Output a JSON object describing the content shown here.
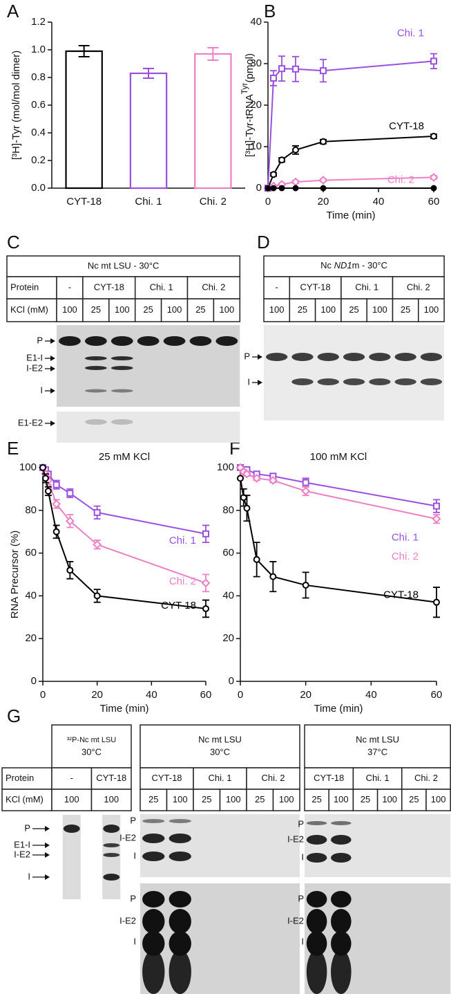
{
  "chart_data": [
    {
      "panel": "A",
      "type": "bar",
      "y_label": "[³H]-Tyr (mol/mol dimer)",
      "categories": [
        "CYT-18",
        "Chi. 1",
        "Chi. 2"
      ],
      "values": [
        0.99,
        0.83,
        0.97
      ],
      "errors": [
        0.04,
        0.035,
        0.045
      ],
      "colors": [
        "#000000",
        "#9a4fe0",
        "#ee7fc4"
      ],
      "ylim": [
        0,
        1.2
      ],
      "yticks": [
        {
          "value": 0,
          "label": "0.0"
        },
        0.2,
        0.4,
        0.6,
        0.8,
        {
          "value": 1,
          "label": "1.0"
        },
        1.2
      ]
    },
    {
      "panel": "B",
      "type": "line",
      "x_label": "Time (min)",
      "y_label": [
        "[³H]-Tyr-tRNA",
        "Tyr",
        "(pmol)"
      ],
      "x": [
        0,
        2,
        5,
        10,
        20,
        60
      ],
      "xlim": [
        0,
        60
      ],
      "xticks": [
        0,
        20,
        40,
        60
      ],
      "ylim": [
        0,
        40
      ],
      "yticks": [
        0,
        10,
        20,
        30,
        40
      ],
      "series": [
        {
          "name": "Chi. 1",
          "color": "#9a4fe0",
          "marker": "square",
          "values": [
            0,
            26.5,
            28.8,
            28.7,
            28.3,
            30.6
          ],
          "errors": [
            null,
            1.8,
            3,
            3,
            2.7,
            1.8
          ]
        },
        {
          "name": "CYT-18",
          "color": "#000000",
          "marker": "circle",
          "values": [
            0,
            3.3,
            6.8,
            9.2,
            11.2,
            12.5
          ],
          "errors": [
            null,
            0.4,
            0.5,
            1,
            0.5,
            0.5
          ]
        },
        {
          "name": "Chi. 2",
          "color": "#ee7fc4",
          "marker": "diamond",
          "values": [
            0,
            0.5,
            0.9,
            1.5,
            1.9,
            2.6
          ],
          "errors": [
            null,
            0.2,
            0.3,
            0.3,
            0.3,
            0.4
          ]
        },
        {
          "color": "#000000",
          "marker": "dot",
          "values": [
            0,
            0,
            0,
            0,
            0,
            0
          ]
        }
      ]
    },
    {
      "panel": "E",
      "type": "line",
      "title": "25 mM KCl",
      "x_label": "Time (min)",
      "y_label": "RNA Precursor (%)",
      "x": [
        0,
        1,
        2,
        5,
        10,
        20,
        60
      ],
      "xlim": [
        0,
        60
      ],
      "xticks": [
        0,
        20,
        40,
        60
      ],
      "ylim": [
        0,
        100
      ],
      "yticks": [
        0,
        20,
        40,
        60,
        80,
        100
      ],
      "series": [
        {
          "name": "Chi. 1",
          "color": "#9a4fe0",
          "marker": "square",
          "values": [
            100,
            99,
            97,
            92,
            88,
            79,
            69
          ],
          "errors": [
            null,
            1,
            1,
            2,
            2,
            3,
            4
          ]
        },
        {
          "name": "Chi. 2",
          "color": "#ee7fc4",
          "marker": "diamond",
          "values": [
            100,
            97,
            94,
            83,
            75,
            64,
            46
          ],
          "errors": [
            null,
            1,
            2,
            2,
            3,
            2,
            4
          ]
        },
        {
          "name": "CYT-18",
          "color": "#000000",
          "marker": "circle",
          "values": [
            100,
            95,
            89,
            70,
            52,
            40,
            34
          ],
          "errors": [
            null,
            2,
            2,
            3,
            4,
            3,
            4
          ]
        }
      ]
    },
    {
      "panel": "F",
      "type": "line",
      "title": "100 mM KCl",
      "x_label": "Time (min)",
      "x": [
        0,
        1,
        2,
        5,
        10,
        20,
        60
      ],
      "xlim": [
        0,
        60
      ],
      "xticks": [
        0,
        20,
        40,
        60
      ],
      "ylim": [
        0,
        100
      ],
      "yticks": [
        0,
        20,
        40,
        60,
        80,
        100
      ],
      "series": [
        {
          "name": "Chi. 1",
          "color": "#9a4fe0",
          "marker": "square",
          "values": [
            100,
            99,
            99,
            97,
            96,
            93,
            82
          ],
          "errors": [
            null,
            1,
            1,
            1,
            1,
            2,
            3
          ]
        },
        {
          "name": "Chi. 2",
          "color": "#ee7fc4",
          "marker": "diamond",
          "values": [
            100,
            98,
            97,
            95,
            94,
            89,
            76
          ],
          "errors": [
            null,
            1,
            1,
            1,
            1,
            2,
            2
          ]
        },
        {
          "name": "CYT-18",
          "color": "#000000",
          "marker": "circle",
          "values": [
            95,
            86,
            81,
            57,
            49,
            45,
            37
          ],
          "errors": [
            null,
            4,
            6,
            8,
            7,
            6,
            7
          ]
        }
      ]
    }
  ],
  "gel_panels": [
    {
      "panel": "C",
      "tables": [
        {
          "title": [
            "Nc mt LSU - 30°C"
          ],
          "row_labels": [
            "Protein",
            "KCl (mM)"
          ],
          "proteins": [
            "-",
            "CYT-18",
            "Chi. 1",
            "Chi. 2"
          ],
          "kcl": [
            100,
            25,
            100,
            25,
            100,
            25,
            100
          ],
          "bands": [
            [
              "P",
              "E1-I",
              "I-E2",
              "I"
            ],
            [
              "E1-E2"
            ]
          ]
        }
      ]
    },
    {
      "panel": "D",
      "tables": [
        {
          "title": [
            "Nc ",
            "ND1",
            "m - 30°C"
          ],
          "proteins": [
            "-",
            "CYT-18",
            "Chi. 1",
            "Chi. 2"
          ],
          "kcl": [
            100,
            25,
            100,
            25,
            100,
            25,
            100
          ],
          "bands": [
            [
              "P",
              "I"
            ]
          ]
        }
      ]
    },
    {
      "panel": "G",
      "tables": [
        {
          "title": [
            "³²P-Nc mt LSU",
            "30°C"
          ],
          "row_labels": [
            "Protein",
            "KCl (mM)"
          ],
          "proteins": [
            "-",
            "CYT-18"
          ],
          "kcl": [
            100,
            100
          ],
          "bands": [
            [
              "P",
              "E1-I",
              "I-E2",
              "I"
            ]
          ]
        },
        {
          "title": [
            "Nc mt LSU",
            "30°C"
          ],
          "proteins": [
            "CYT-18",
            "Chi. 1",
            "Chi. 2"
          ],
          "kcl": [
            25,
            100,
            25,
            100,
            25,
            100
          ],
          "bands": [
            [
              "P",
              "I-E2",
              "I"
            ],
            [
              "P",
              "I-E2",
              "I"
            ]
          ]
        },
        {
          "title": [
            "Nc mt LSU",
            "37°C"
          ],
          "proteins": [
            "CYT-18",
            "Chi. 1",
            "Chi. 2"
          ],
          "kcl": [
            25,
            100,
            25,
            100,
            25,
            100
          ],
          "bands": [
            [
              "P",
              "I-E2",
              "I"
            ],
            [
              "P",
              "I-E2",
              "I"
            ]
          ]
        }
      ]
    }
  ]
}
